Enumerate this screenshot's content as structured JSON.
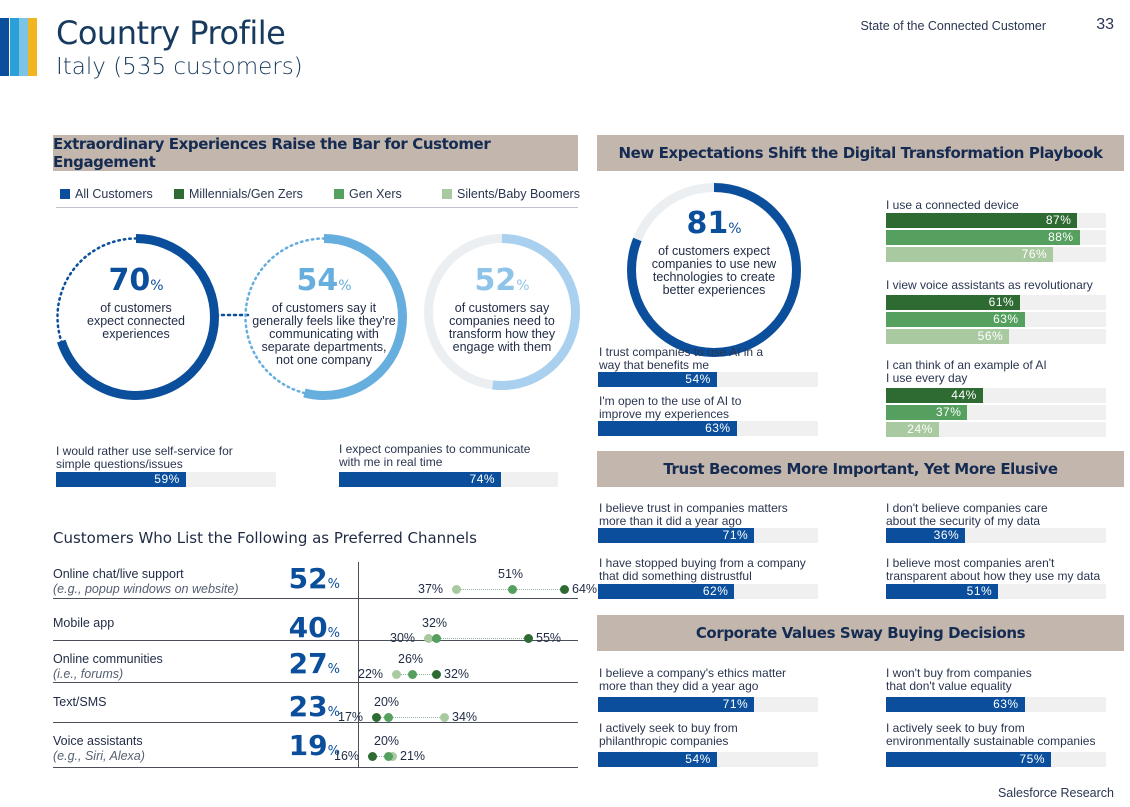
{
  "header": {
    "title": "Country Profile",
    "subtitle": "Italy (535 customers)",
    "report": "State of the Connected Customer",
    "page_number": "33",
    "stripe_colors": [
      "#0b4f9c",
      "#2a9fd8",
      "#7cc3e8",
      "#f1b522"
    ]
  },
  "left_section": {
    "banner": "Extraordinary Experiences Raise the Bar for Customer Engagement",
    "legend": [
      {
        "label": "All Customers",
        "color": "#0b4f9c"
      },
      {
        "label": "Millennials/Gen Zers",
        "color": "#2d6b33"
      },
      {
        "label": "Gen Xers",
        "color": "#56a05f"
      },
      {
        "label": "Silents/Baby Boomers",
        "color": "#a9c9a0"
      }
    ],
    "circles": [
      {
        "value": "70",
        "unit": "%",
        "pct": 70,
        "color": "#0b4f9c",
        "line1": "of customers",
        "line2": "expect connected",
        "line3": "experiences",
        "line4": "",
        "line5": ""
      },
      {
        "value": "54",
        "unit": "%",
        "pct": 54,
        "color": "#66aede",
        "line1": "of customers say it",
        "line2": "generally feels like they're",
        "line3": "communicating with",
        "line4": "separate departments,",
        "line5": "not one company"
      },
      {
        "value": "52",
        "unit": "%",
        "pct": 52,
        "color": "#a9d0ee",
        "line1": "of customers say",
        "line2": "companies need to",
        "line3": "transform how they",
        "line4": "engage with them",
        "line5": ""
      }
    ],
    "stats": [
      {
        "line1": "I would rather use self-service for",
        "line2": "simple questions/issues",
        "value": "59%",
        "pct": 59
      },
      {
        "line1": "I expect companies to communicate",
        "line2": "with me in real time",
        "value": "74%",
        "pct": 74
      }
    ]
  },
  "channels": {
    "title": "Customers Who List the Following as Preferred Channels",
    "rows": [
      {
        "label": "Online chat/live support",
        "sublabel": "(e.g., popup windows on website)",
        "value": "52",
        "unit": "%",
        "silents": "37%",
        "genx": "51%",
        "millennials": "64%",
        "s": 37,
        "g": 51,
        "m": 64
      },
      {
        "label": "Mobile app",
        "sublabel": "",
        "value": "40",
        "unit": "%",
        "silents": "30%",
        "genx": "32%",
        "millennials": "55%",
        "s": 30,
        "g": 32,
        "m": 55
      },
      {
        "label": "Online communities",
        "sublabel": "(i.e., forums)",
        "value": "27",
        "unit": "%",
        "silents": "22%",
        "genx": "26%",
        "millennials": "32%",
        "s": 22,
        "g": 26,
        "m": 32
      },
      {
        "label": "Text/SMS",
        "sublabel": "",
        "value": "23",
        "unit": "%",
        "silents": "34%",
        "genx": "20%",
        "millennials": "17%",
        "s": 34,
        "g": 20,
        "m": 17
      },
      {
        "label": "Voice assistants",
        "sublabel": "(e.g., Siri, Alexa)",
        "value": "19",
        "unit": "%",
        "silents": "21%",
        "genx": "20%",
        "millennials": "16%",
        "s": 21,
        "g": 20,
        "m": 16
      }
    ]
  },
  "digital_section": {
    "banner": "New Expectations Shift the Digital Transformation Playbook",
    "circle": {
      "value": "81",
      "unit": "%",
      "pct": 81,
      "line1": "of customers expect",
      "line2": "companies to use new",
      "line3": "technologies to create",
      "line4": "better experiences"
    },
    "stats": [
      {
        "line1": "I trust companies to use AI in a",
        "line2": "way that benefits me",
        "value": "54%",
        "pct": 54
      },
      {
        "line1": "I'm open to the use of AI to",
        "line2": "improve my experiences",
        "value": "63%",
        "pct": 63
      }
    ],
    "groups": [
      {
        "line1": "I use a connected device",
        "line2": "",
        "bars": [
          {
            "value": "87%",
            "pct": 87
          },
          {
            "value": "88%",
            "pct": 88
          },
          {
            "value": "76%",
            "pct": 76
          }
        ]
      },
      {
        "line1": "I view voice assistants as revolutionary",
        "line2": "",
        "bars": [
          {
            "value": "61%",
            "pct": 61
          },
          {
            "value": "63%",
            "pct": 63
          },
          {
            "value": "56%",
            "pct": 56
          }
        ]
      },
      {
        "line1": "I can think of an example of AI",
        "line2": "I use every day",
        "bars": [
          {
            "value": "44%",
            "pct": 44
          },
          {
            "value": "37%",
            "pct": 37
          },
          {
            "value": "24%",
            "pct": 24
          }
        ]
      }
    ]
  },
  "trust_section": {
    "banner": "Trust Becomes More Important, Yet More Elusive",
    "stats": [
      {
        "line1": "I believe trust in companies matters",
        "line2": "more than it did a year ago",
        "value": "71%",
        "pct": 71
      },
      {
        "line1": "I don't believe companies care",
        "line2": "about the security of my data",
        "value": "36%",
        "pct": 36
      },
      {
        "line1": "I have stopped buying from a company",
        "line2": "that did something distrustful",
        "value": "62%",
        "pct": 62
      },
      {
        "line1": "I believe most companies aren't",
        "line2": "transparent about how they use my data",
        "value": "51%",
        "pct": 51
      }
    ]
  },
  "values_section": {
    "banner": "Corporate Values Sway Buying Decisions",
    "stats": [
      {
        "line1": "I believe a company's ethics matter",
        "line2": "more than they did a year ago",
        "value": "71%",
        "pct": 71
      },
      {
        "line1": "I won't buy from companies",
        "line2": "that don't value equality",
        "value": "63%",
        "pct": 63
      },
      {
        "line1": "I actively seek to buy from",
        "line2": "philanthropic companies",
        "value": "54%",
        "pct": 54
      },
      {
        "line1": "I actively seek to buy from",
        "line2": "environmentally sustainable companies",
        "value": "75%",
        "pct": 75
      }
    ]
  },
  "footer": {
    "source": "Salesforce Research"
  }
}
